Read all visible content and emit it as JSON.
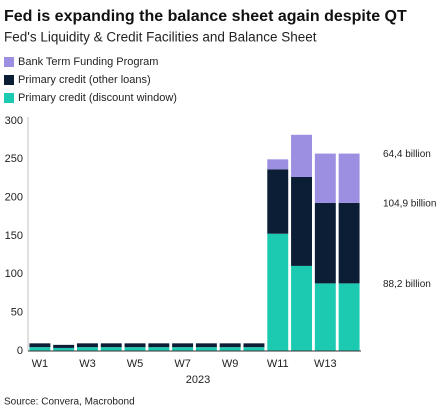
{
  "chart_data": {
    "type": "stacked-bar",
    "title": "Fed is expanding the balance sheet again despite QT",
    "subtitle": "Fed's Liquidity & Credit Facilities and Balance Sheet",
    "x_label": "2023",
    "source": "Source: Convera, Macrobond",
    "categories": [
      "W1",
      null,
      "W3",
      null,
      "W5",
      null,
      "W7",
      null,
      "W9",
      null,
      "W11",
      null,
      "W13",
      null
    ],
    "series": [
      {
        "name": "Primary credit (discount window)",
        "color": "#1ccab2",
        "values": [
          5,
          4,
          5,
          5,
          5,
          5,
          5,
          5,
          5,
          5,
          153,
          111,
          88.2,
          88.2
        ],
        "value_labels": [
          null,
          null,
          null,
          null,
          null,
          null,
          null,
          null,
          null,
          null,
          null,
          null,
          null,
          "88,2 billion"
        ],
        "label_color": "#1ccab2"
      },
      {
        "name": "Primary credit (other loans)",
        "color": "#0c1e36",
        "values": [
          5,
          4,
          5,
          5,
          5,
          5,
          5,
          5,
          5,
          5,
          84,
          116,
          104.9,
          104.9
        ],
        "value_labels": [
          null,
          null,
          null,
          null,
          null,
          null,
          null,
          null,
          null,
          null,
          null,
          null,
          null,
          "104,9 billion"
        ],
        "label_color": "#111111"
      },
      {
        "name": "Bank Term Funding Program",
        "color": "#9c8fe2",
        "values": [
          0,
          0,
          0,
          0,
          0,
          0,
          0,
          0,
          0,
          0,
          13,
          55,
          64.4,
          64.4
        ],
        "value_labels": [
          null,
          null,
          null,
          null,
          null,
          null,
          null,
          null,
          null,
          null,
          null,
          null,
          null,
          "64,4 billion"
        ],
        "label_color": "#888888"
      }
    ],
    "ylim": [
      0,
      300
    ],
    "yticks": [
      0,
      50,
      100,
      150,
      200,
      250,
      300
    ],
    "grid": false
  }
}
